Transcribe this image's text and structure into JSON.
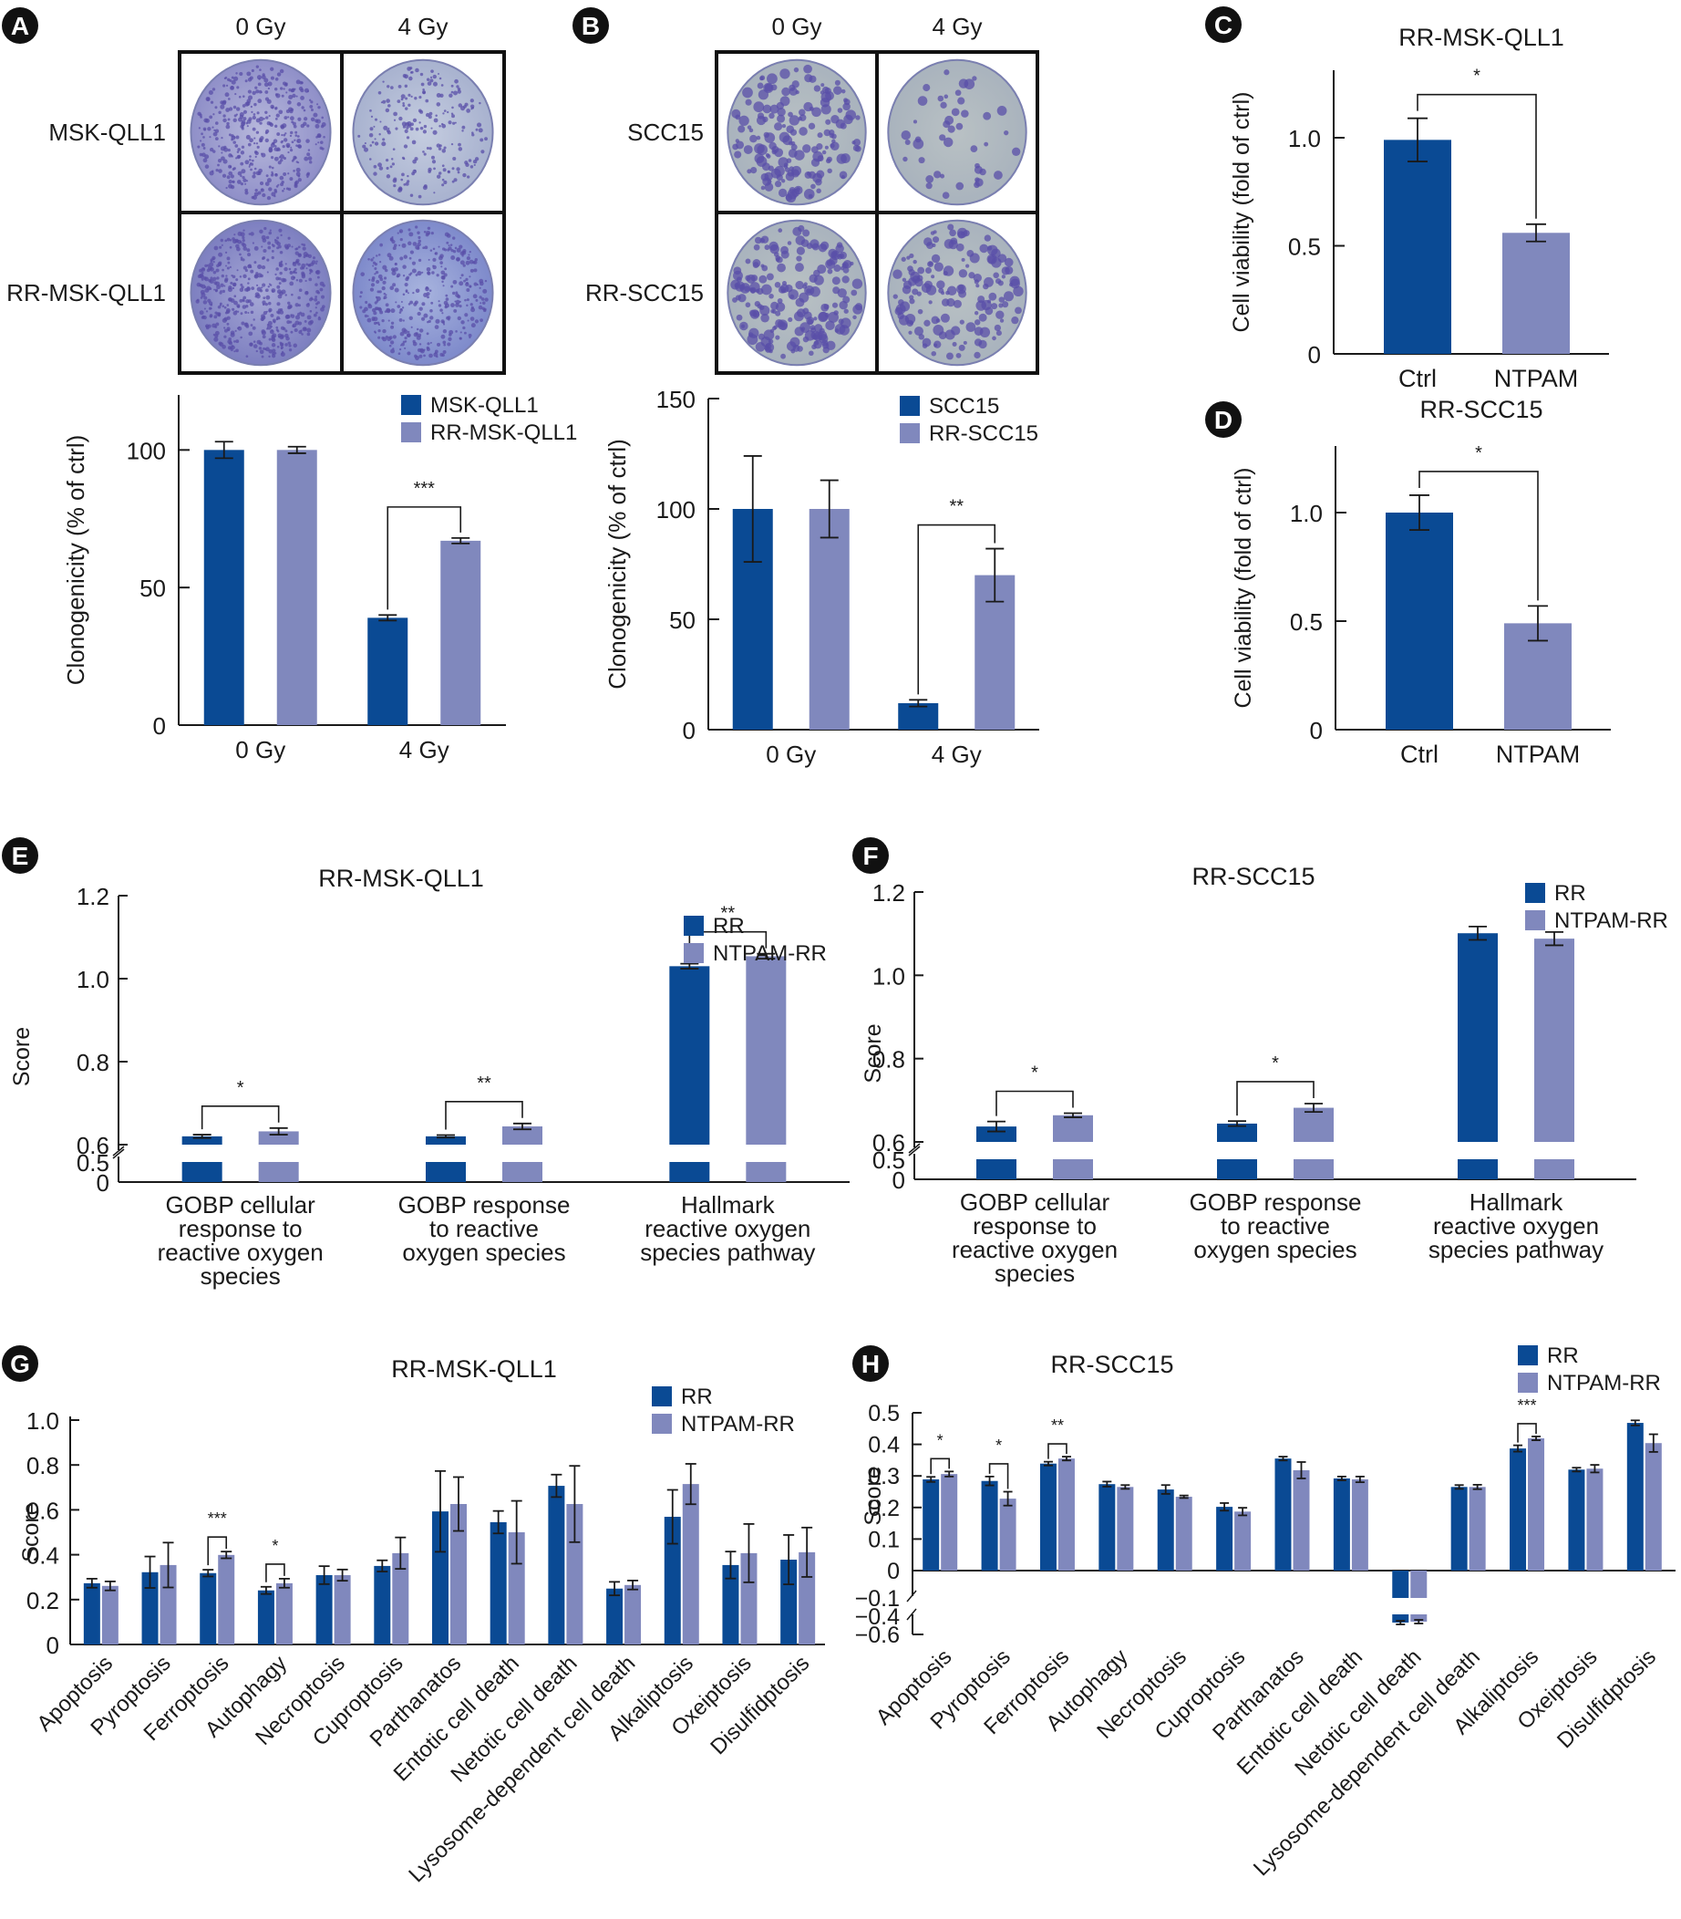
{
  "colors": {
    "primary": "#0a4a94",
    "secondary": "#8088bd",
    "axis": "#1a1a1a"
  },
  "panels": {
    "A": {
      "letter": "A",
      "image_grid": {
        "col_labels": [
          "0 Gy",
          "4 Gy"
        ],
        "row_labels": [
          "MSK-QLL1",
          "RR-MSK-QLL1"
        ],
        "description": "Crystal violet colony formation dishes"
      }
    },
    "B": {
      "letter": "B",
      "image_grid": {
        "col_labels": [
          "0 Gy",
          "4 Gy"
        ],
        "row_labels": [
          "SCC15",
          "RR-SCC15"
        ],
        "description": "Crystal violet colony formation dishes"
      }
    },
    "C": {
      "letter": "C"
    },
    "D": {
      "letter": "D"
    },
    "E": {
      "letter": "E"
    },
    "F": {
      "letter": "F"
    },
    "G": {
      "letter": "G"
    },
    "H": {
      "letter": "H"
    }
  },
  "chart_data": [
    {
      "id": "A",
      "type": "bar",
      "title": "",
      "xlabel": "",
      "ylabel": "Clonogenicity (% of ctrl)",
      "ylim": [
        0,
        120
      ],
      "yticks": [
        0,
        50,
        100
      ],
      "ytick_labels": [
        "0",
        "50",
        "100"
      ],
      "categories": [
        "0 Gy",
        "4 Gy"
      ],
      "series": [
        {
          "name": "MSK-QLL1",
          "values": [
            100,
            39
          ],
          "errors": [
            3,
            1
          ]
        },
        {
          "name": "RR-MSK-QLL1",
          "values": [
            100,
            67
          ],
          "errors": [
            1.2,
            1
          ]
        }
      ],
      "significance": [
        {
          "category": 1,
          "label": "***"
        }
      ],
      "legend": "top-right"
    },
    {
      "id": "B",
      "type": "bar",
      "title": "",
      "xlabel": "",
      "ylabel": "Clonogenicity (% of ctrl)",
      "ylim": [
        0,
        150
      ],
      "yticks": [
        0,
        50,
        100,
        150
      ],
      "ytick_labels": [
        "0",
        "50",
        "100",
        "150"
      ],
      "categories": [
        "0 Gy",
        "4 Gy"
      ],
      "series": [
        {
          "name": "SCC15",
          "values": [
            100,
            12
          ],
          "errors": [
            24,
            1.5
          ]
        },
        {
          "name": "RR-SCC15",
          "values": [
            100,
            70
          ],
          "errors": [
            13,
            12
          ]
        }
      ],
      "significance": [
        {
          "category": 1,
          "label": "**"
        }
      ],
      "legend": "top-right"
    },
    {
      "id": "C",
      "type": "bar",
      "title": "RR-MSK-QLL1",
      "xlabel": "",
      "ylabel": "Cell viability (fold of ctrl)",
      "ylim": [
        0,
        1.3
      ],
      "yticks": [
        0,
        0.5,
        1.0
      ],
      "ytick_labels": [
        "0",
        "0.5",
        "1.0"
      ],
      "categories": [
        "Ctrl",
        "NTPAM"
      ],
      "values": [
        0.99,
        0.56
      ],
      "errors": [
        0.1,
        0.04
      ],
      "significance": [
        {
          "label": "*"
        }
      ]
    },
    {
      "id": "D",
      "type": "bar",
      "title": "RR-SCC15",
      "xlabel": "",
      "ylabel": "Cell viability (fold of ctrl)",
      "ylim": [
        0,
        1.3
      ],
      "yticks": [
        0,
        0.5,
        1.0
      ],
      "ytick_labels": [
        "0",
        "0.5",
        "1.0"
      ],
      "categories": [
        "Ctrl",
        "NTPAM"
      ],
      "values": [
        1.0,
        0.49
      ],
      "errors": [
        0.08,
        0.08
      ],
      "significance": [
        {
          "label": "*"
        }
      ]
    },
    {
      "id": "E",
      "type": "bar",
      "title": "RR-MSK-QLL1",
      "xlabel": "",
      "ylabel": "Score",
      "axis_break": [
        0.5,
        0.6
      ],
      "ylim": [
        0,
        1.2
      ],
      "yticks": [
        0,
        0.5,
        0.6,
        0.8,
        1.0,
        1.2
      ],
      "ytick_labels": [
        "0",
        "0.5",
        "0.6",
        "0.8",
        "1.0",
        "1.2"
      ],
      "categories": [
        [
          "GOBP cellular",
          "response to",
          "reactive oxygen",
          "species"
        ],
        [
          "GOBP response",
          "to reactive",
          "oxygen species"
        ],
        [
          "Hallmark",
          "reactive oxygen",
          "species pathway"
        ]
      ],
      "series": [
        {
          "name": "RR",
          "values": [
            0.62,
            0.62,
            1.03
          ],
          "errors": [
            0.004,
            0.003,
            0.006
          ]
        },
        {
          "name": "NTPAM-RR",
          "values": [
            0.632,
            0.644,
            1.054
          ],
          "errors": [
            0.008,
            0.007,
            0.006
          ]
        }
      ],
      "significance": [
        {
          "category": 0,
          "label": "*"
        },
        {
          "category": 1,
          "label": "**"
        },
        {
          "category": 2,
          "label": "**"
        }
      ],
      "legend": "top-right"
    },
    {
      "id": "F",
      "type": "bar",
      "title": "RR-SCC15",
      "xlabel": "",
      "ylabel": "Score",
      "axis_break": [
        0.5,
        0.6
      ],
      "ylim": [
        0,
        1.2
      ],
      "yticks": [
        0,
        0.5,
        0.6,
        0.8,
        1.0,
        1.2
      ],
      "ytick_labels": [
        "0",
        "0.5",
        "0.6",
        "0.8",
        "1.0",
        "1.2"
      ],
      "categories": [
        [
          "GOBP cellular",
          "response to",
          "reactive oxygen",
          "species"
        ],
        [
          "GOBP response",
          "to reactive",
          "oxygen species"
        ],
        [
          "Hallmark",
          "reactive oxygen",
          "species pathway"
        ]
      ],
      "series": [
        {
          "name": "RR",
          "values": [
            0.637,
            0.644,
            1.101
          ],
          "errors": [
            0.012,
            0.006,
            0.016
          ]
        },
        {
          "name": "NTPAM-RR",
          "values": [
            0.664,
            0.682,
            1.088
          ],
          "errors": [
            0.005,
            0.01,
            0.016
          ]
        }
      ],
      "significance": [
        {
          "category": 0,
          "label": "*"
        },
        {
          "category": 1,
          "label": "*"
        }
      ],
      "legend": "top-right"
    },
    {
      "id": "G",
      "type": "bar",
      "title": "RR-MSK-QLL1",
      "xlabel": "",
      "ylabel": "Score",
      "ylim": [
        0,
        1.0
      ],
      "yticks": [
        0,
        0.2,
        0.4,
        0.6,
        0.8,
        1.0
      ],
      "ytick_labels": [
        "0",
        "0.2",
        "0.4",
        "0.6",
        "0.8",
        "1.0"
      ],
      "categories": [
        "Apoptosis",
        "Pyroptosis",
        "Ferroptosis",
        "Autophagy",
        "Necroptosis",
        "Cuproptosis",
        "Parthanatos",
        "Entotic cell death",
        "Netotic cell death",
        "Lysosome-dependent cell death",
        "Alkaliptosis",
        "Oxeiptosis",
        "Disulfidptosis"
      ],
      "series": [
        {
          "name": "RR",
          "values": [
            0.273,
            0.322,
            0.318,
            0.241,
            0.309,
            0.35,
            0.593,
            0.545,
            0.707,
            0.249,
            0.569,
            0.354,
            0.378
          ],
          "errors": [
            0.02,
            0.07,
            0.015,
            0.016,
            0.04,
            0.025,
            0.18,
            0.05,
            0.05,
            0.03,
            0.12,
            0.06,
            0.11
          ]
        },
        {
          "name": "NTPAM-RR",
          "values": [
            0.261,
            0.354,
            0.399,
            0.273,
            0.309,
            0.407,
            0.626,
            0.5,
            0.626,
            0.265,
            0.715,
            0.407,
            0.411
          ],
          "errors": [
            0.02,
            0.1,
            0.015,
            0.02,
            0.025,
            0.07,
            0.12,
            0.14,
            0.17,
            0.02,
            0.09,
            0.13,
            0.11
          ]
        }
      ],
      "significance": [
        {
          "category": 2,
          "label": "***"
        },
        {
          "category": 3,
          "label": "*"
        }
      ],
      "legend": "top-right"
    },
    {
      "id": "H",
      "type": "bar",
      "title": "RR-SCC15",
      "xlabel": "",
      "ylabel": "Score",
      "axis_break": [
        -0.4,
        -0.1
      ],
      "ylim": [
        -0.6,
        0.5
      ],
      "yticks": [
        -0.6,
        -0.4,
        -0.1,
        0,
        0.1,
        0.2,
        0.3,
        0.4,
        0.5
      ],
      "ytick_labels": [
        "−0.6",
        "−0.4",
        "−0.1",
        "0",
        "0.1",
        "0.2",
        "0.3",
        "0.4",
        "0.5"
      ],
      "categories": [
        "Apoptosis",
        "Pyroptosis",
        "Ferroptosis",
        "Autophagy",
        "Necroptosis",
        "Cuproptosis",
        "Parthanatos",
        "Entotic cell death",
        "Netotic cell death",
        "Lysosome-dependent cell death",
        "Alkaliptosis",
        "Oxeiptosis",
        "Disulfidptosis"
      ],
      "series": [
        {
          "name": "RR",
          "values": [
            0.289,
            0.284,
            0.339,
            0.274,
            0.257,
            0.202,
            0.355,
            0.292,
            -0.47,
            0.265,
            0.387,
            0.32,
            0.468
          ],
          "errors": [
            0.008,
            0.014,
            0.006,
            0.008,
            0.014,
            0.012,
            0.006,
            0.006,
            0.02,
            0.006,
            0.01,
            0.006,
            0.008
          ]
        },
        {
          "name": "NTPAM-RR",
          "values": [
            0.306,
            0.228,
            0.355,
            0.265,
            0.234,
            0.187,
            0.318,
            0.289,
            -0.46,
            0.265,
            0.419,
            0.323,
            0.404
          ],
          "errors": [
            0.008,
            0.022,
            0.006,
            0.006,
            0.004,
            0.012,
            0.026,
            0.009,
            0.02,
            0.007,
            0.006,
            0.012,
            0.028
          ]
        }
      ],
      "significance": [
        {
          "category": 0,
          "label": "*"
        },
        {
          "category": 1,
          "label": "*"
        },
        {
          "category": 2,
          "label": "**"
        },
        {
          "category": 10,
          "label": "***"
        }
      ],
      "legend": "top-right"
    }
  ]
}
